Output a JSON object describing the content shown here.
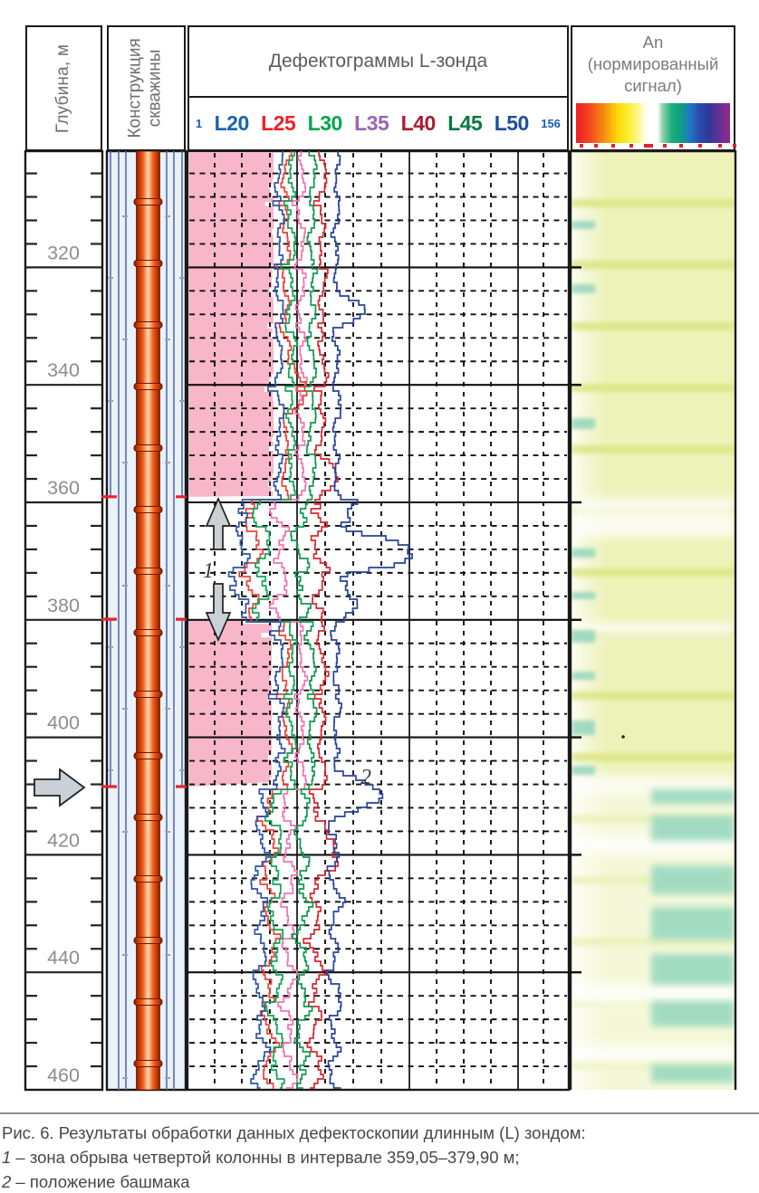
{
  "header": {
    "depth_col": "Глубина, м",
    "construction_col_line1": "Конструкция",
    "construction_col_line2": "скважины",
    "defect_col": "Дефектограммы L-зонда",
    "an_line1": "Аn",
    "an_line2": "(нормированный",
    "an_line3": "сигнал)"
  },
  "chart_data": {
    "type": "line",
    "title": "Дефектограммы L-зонда",
    "depth_axis": {
      "label": "Глубина, м",
      "unit": "м",
      "range_m": [
        300,
        462
      ],
      "major_step_m": 20,
      "minor_step_m": 4,
      "tick_labels": [
        "320",
        "340",
        "360",
        "380",
        "400",
        "420",
        "440",
        "460"
      ]
    },
    "amplitude_axis": {
      "min_label": "1",
      "max_label": "156"
    },
    "series": [
      {
        "name": "L20",
        "color": "#2f55a5",
        "label_color": "#1565b3"
      },
      {
        "name": "L25",
        "color": "#f04138",
        "label_color": "#ec2227"
      },
      {
        "name": "L30",
        "color": "#12a558",
        "label_color": "#00a650"
      },
      {
        "name": "L35",
        "color": "#f273b0",
        "label_color": "#9e62b5"
      },
      {
        "name": "L40",
        "color": "#d8282f",
        "label_color": "#a61e30"
      },
      {
        "name": "L45",
        "color": "#0d9a50",
        "label_color": "#007a42"
      },
      {
        "name": "L50",
        "color": "#27439c",
        "label_color": "#1d4f9f"
      }
    ],
    "annotations": [
      {
        "label": "1",
        "meaning": "зона обрыва четвертой колонны",
        "interval_m": [
          359.05,
          379.9
        ]
      },
      {
        "label": "2",
        "meaning": "положение башмака",
        "depth_m": 409
      }
    ],
    "highlight_zones_m": [
      [
        300,
        359.05
      ],
      [
        379.9,
        408.4
      ]
    ],
    "colors": {
      "pink_zone": "#f8b6ca",
      "grid": "#111111",
      "arrow_fill": "#c9d1d7",
      "arrow_stroke": "#222222",
      "casing_line": "#5a6cb2",
      "casing_bg": "#e9f2f9",
      "casing_break_mark": "#e8232a",
      "pipe_dark": "#7e1b00",
      "pipe_mid": "#ef5a17",
      "pipe_light": "#ffdcb4",
      "depth_label": "#8d8d8d"
    },
    "normalized_signal": {
      "title": "Аn (нормированный сигнал)",
      "colorbar_stops": [
        [
          0,
          "#ee1c25"
        ],
        [
          9,
          "#f4471e"
        ],
        [
          18,
          "#f78c12"
        ],
        [
          27,
          "#fdd705"
        ],
        [
          34,
          "#f9ee32"
        ],
        [
          40,
          "#fcf787"
        ],
        [
          45,
          "#fffce8"
        ],
        [
          48,
          "#ffffff"
        ],
        [
          53,
          "#ffffff"
        ],
        [
          56,
          "#93d3ab"
        ],
        [
          62,
          "#1cb077"
        ],
        [
          68,
          "#0d9d86"
        ],
        [
          74,
          "#2276c5"
        ],
        [
          80,
          "#2b4bb0"
        ],
        [
          86,
          "#2c3a96"
        ],
        [
          93,
          "#653094"
        ],
        [
          100,
          "#96278e"
        ]
      ],
      "colorbar_ticks": [
        {
          "p": 2,
          "w": 4
        },
        {
          "p": 11,
          "w": 4
        },
        {
          "p": 22,
          "w": 4
        },
        {
          "p": 33,
          "w": 4
        },
        {
          "p": 42,
          "w": 10
        },
        {
          "p": 54,
          "w": 4
        },
        {
          "p": 64,
          "w": 4
        },
        {
          "p": 76,
          "w": 4
        },
        {
          "p": 88,
          "w": 4
        },
        {
          "p": 97,
          "w": 4
        }
      ],
      "collar_band_color": "#d7e57d",
      "white_bands": [
        {
          "y": 382,
          "h": 44
        },
        {
          "y": 520,
          "h": 16
        },
        {
          "y": 688,
          "h": 20
        },
        {
          "y": 754,
          "h": 22
        },
        {
          "y": 918,
          "h": 24
        },
        {
          "y": 986,
          "h": 20
        },
        {
          "y": 1086,
          "h": 16
        }
      ],
      "teal_left_streaks": [
        {
          "y": 76,
          "h": 9
        },
        {
          "y": 146,
          "h": 10
        },
        {
          "y": 294,
          "h": 12
        },
        {
          "y": 438,
          "h": 10
        },
        {
          "y": 486,
          "h": 8
        },
        {
          "y": 528,
          "h": 14
        },
        {
          "y": 574,
          "h": 9
        },
        {
          "y": 628,
          "h": 16
        },
        {
          "y": 678,
          "h": 10
        }
      ],
      "teal_right_patches": [
        {
          "y": 704,
          "h": 16
        },
        {
          "y": 733,
          "h": 28
        },
        {
          "y": 788,
          "h": 32
        },
        {
          "y": 834,
          "h": 36
        },
        {
          "y": 886,
          "h": 34
        },
        {
          "y": 938,
          "h": 28
        },
        {
          "y": 1008,
          "h": 20
        },
        {
          "y": 1044,
          "h": 14
        },
        {
          "y": 1146,
          "h": 10
        }
      ]
    }
  },
  "caption": {
    "line1": "Рис. 6. Результаты обработки данных дефектоскопии длинным (L) зондом:",
    "items": [
      {
        "num": "1",
        "text": " – зона обрыва четвертой колонны в интервале 359,05–379,90 м;"
      },
      {
        "num": "2",
        "text": " – положение башмака"
      }
    ]
  }
}
